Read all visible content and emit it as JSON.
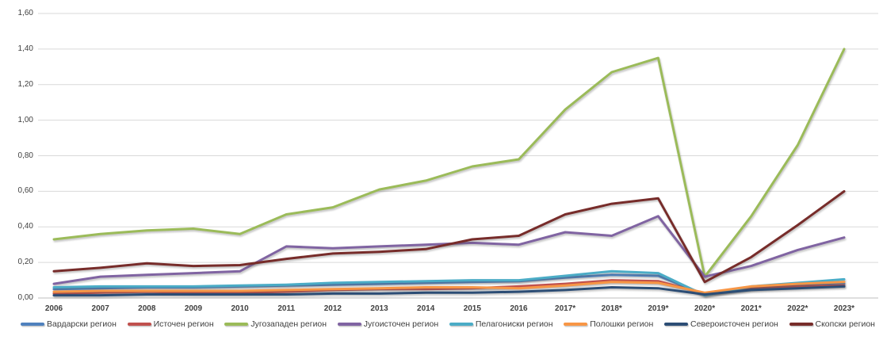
{
  "chart_data": {
    "type": "line",
    "title": "",
    "xlabel": "",
    "ylabel": "",
    "grid": true,
    "legend_position": "bottom",
    "decimal_separator": ",",
    "categories": [
      "2006",
      "2007",
      "2008",
      "2009",
      "2010",
      "2011",
      "2012",
      "2013",
      "2014",
      "2015",
      "2016",
      "2017*",
      "2018*",
      "2019*",
      "2020*",
      "2021*",
      "2022*",
      "2023*"
    ],
    "y_axis": {
      "min": 0.0,
      "max": 1.6,
      "step": 0.2,
      "tick_labels": [
        "0,00",
        "0,20",
        "0,40",
        "0,60",
        "0,80",
        "1,00",
        "1,20",
        "1,40",
        "1,60"
      ]
    },
    "series": [
      {
        "name": "Вардарски регион",
        "color": "#4F81BD",
        "values": [
          0.05,
          0.055,
          0.06,
          0.06,
          0.065,
          0.07,
          0.075,
          0.08,
          0.085,
          0.09,
          0.095,
          0.115,
          0.13,
          0.125,
          0.02,
          0.05,
          0.07,
          0.08
        ]
      },
      {
        "name": "Источен регион",
        "color": "#C0504D",
        "values": [
          0.025,
          0.03,
          0.035,
          0.03,
          0.03,
          0.035,
          0.045,
          0.05,
          0.05,
          0.055,
          0.065,
          0.08,
          0.1,
          0.095,
          0.025,
          0.055,
          0.065,
          0.07
        ]
      },
      {
        "name": "Југозападен регион",
        "color": "#9BBB59",
        "values": [
          0.33,
          0.36,
          0.38,
          0.39,
          0.36,
          0.47,
          0.51,
          0.61,
          0.66,
          0.74,
          0.78,
          1.06,
          1.27,
          1.35,
          0.12,
          0.46,
          0.86,
          1.4
        ]
      },
      {
        "name": "Југоисточен регион",
        "color": "#8064A2",
        "values": [
          0.08,
          0.12,
          0.13,
          0.14,
          0.15,
          0.29,
          0.28,
          0.29,
          0.3,
          0.31,
          0.3,
          0.37,
          0.35,
          0.46,
          0.12,
          0.18,
          0.27,
          0.34
        ]
      },
      {
        "name": "Пелагониски регион",
        "color": "#4BACC6",
        "values": [
          0.06,
          0.065,
          0.065,
          0.065,
          0.07,
          0.075,
          0.085,
          0.09,
          0.095,
          0.1,
          0.1,
          0.125,
          0.15,
          0.14,
          0.015,
          0.065,
          0.085,
          0.105
        ]
      },
      {
        "name": "Полошки регион",
        "color": "#F79646",
        "values": [
          0.035,
          0.04,
          0.04,
          0.04,
          0.04,
          0.045,
          0.05,
          0.055,
          0.06,
          0.06,
          0.055,
          0.07,
          0.09,
          0.085,
          0.03,
          0.065,
          0.08,
          0.09
        ]
      },
      {
        "name": "Североисточен регион",
        "color": "#2C4D75",
        "values": [
          0.015,
          0.015,
          0.02,
          0.02,
          0.02,
          0.02,
          0.025,
          0.025,
          0.03,
          0.03,
          0.035,
          0.045,
          0.06,
          0.055,
          0.02,
          0.045,
          0.055,
          0.065
        ]
      },
      {
        "name": "Скопски регион",
        "color": "#772C2A",
        "values": [
          0.15,
          0.17,
          0.195,
          0.18,
          0.185,
          0.22,
          0.25,
          0.26,
          0.275,
          0.33,
          0.35,
          0.47,
          0.53,
          0.56,
          0.09,
          0.23,
          0.41,
          0.6
        ]
      }
    ]
  }
}
